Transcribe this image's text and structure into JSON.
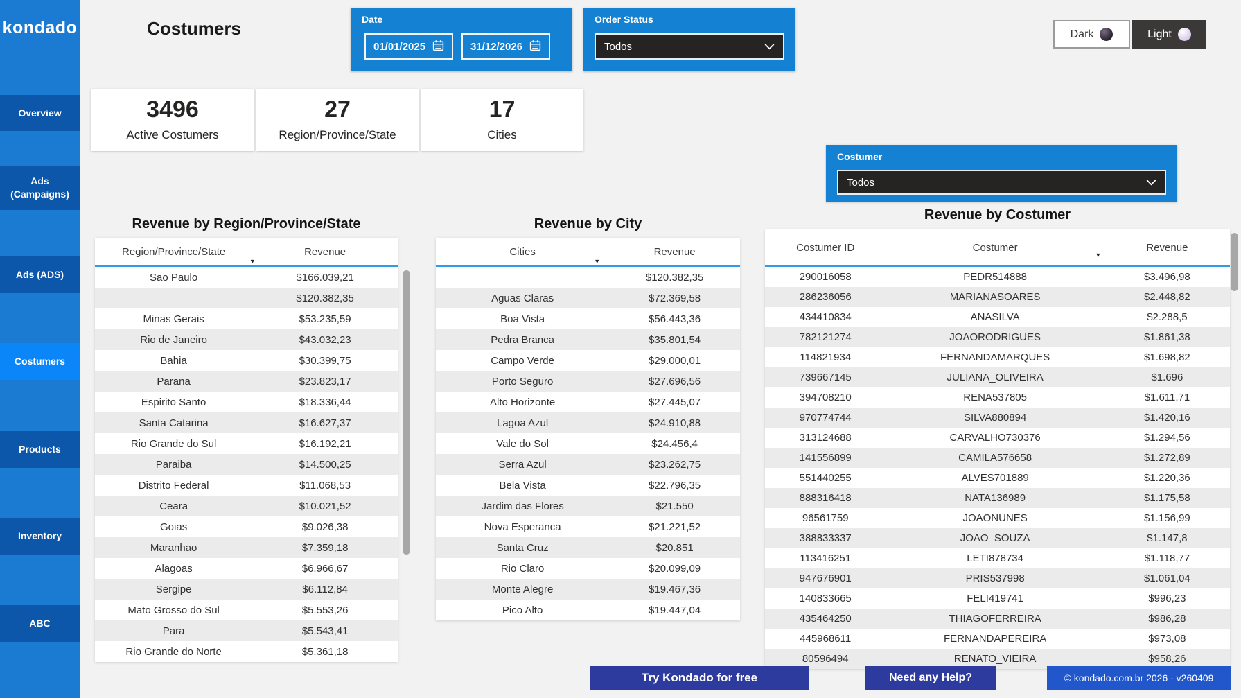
{
  "sidebar": {
    "logo": "kondado",
    "items": [
      {
        "label": "Overview",
        "active": false
      },
      {
        "label": "Ads (Campaigns)",
        "active": false
      },
      {
        "label": "Ads (ADS)",
        "active": false
      },
      {
        "label": "Costumers",
        "active": true
      },
      {
        "label": "Products",
        "active": false
      },
      {
        "label": "Inventory",
        "active": false
      },
      {
        "label": "ABC",
        "active": false
      }
    ]
  },
  "header": {
    "title": "Costumers",
    "date_filter": {
      "label": "Date",
      "start": "01/01/2025",
      "end": "31/12/2026"
    },
    "order_status_filter": {
      "label": "Order Status",
      "value": "Todos"
    },
    "theme_toggle": {
      "dark_label": "Dark",
      "light_label": "Light"
    }
  },
  "kpis": [
    {
      "value": "3496",
      "label": "Active Costumers"
    },
    {
      "value": "27",
      "label": "Region/Province/State"
    },
    {
      "value": "17",
      "label": "Cities"
    }
  ],
  "costumer_filter": {
    "label": "Costumer",
    "value": "Todos"
  },
  "icons": {
    "sort_desc": "▼"
  },
  "tables": {
    "region": {
      "title": "Revenue by Region/Province/State",
      "columns": [
        "Region/Province/State",
        "Revenue"
      ],
      "rows": [
        [
          "Sao Paulo",
          "$166.039,21"
        ],
        [
          "",
          "$120.382,35"
        ],
        [
          "Minas Gerais",
          "$53.235,59"
        ],
        [
          "Rio de Janeiro",
          "$43.032,23"
        ],
        [
          "Bahia",
          "$30.399,75"
        ],
        [
          "Parana",
          "$23.823,17"
        ],
        [
          "Espirito Santo",
          "$18.336,44"
        ],
        [
          "Santa Catarina",
          "$16.627,37"
        ],
        [
          "Rio Grande do Sul",
          "$16.192,21"
        ],
        [
          "Paraiba",
          "$14.500,25"
        ],
        [
          "Distrito Federal",
          "$11.068,53"
        ],
        [
          "Ceara",
          "$10.021,52"
        ],
        [
          "Goias",
          "$9.026,38"
        ],
        [
          "Maranhao",
          "$7.359,18"
        ],
        [
          "Alagoas",
          "$6.966,67"
        ],
        [
          "Sergipe",
          "$6.112,84"
        ],
        [
          "Mato Grosso do Sul",
          "$5.553,26"
        ],
        [
          "Para",
          "$5.543,41"
        ],
        [
          "Rio Grande do Norte",
          "$5.361,18"
        ]
      ]
    },
    "city": {
      "title": "Revenue by City",
      "columns": [
        "Cities",
        "Revenue"
      ],
      "rows": [
        [
          "",
          "$120.382,35"
        ],
        [
          "Aguas Claras",
          "$72.369,58"
        ],
        [
          "Boa Vista",
          "$56.443,36"
        ],
        [
          "Pedra Branca",
          "$35.801,54"
        ],
        [
          "Campo Verde",
          "$29.000,01"
        ],
        [
          "Porto Seguro",
          "$27.696,56"
        ],
        [
          "Alto Horizonte",
          "$27.445,07"
        ],
        [
          "Lagoa Azul",
          "$24.910,88"
        ],
        [
          "Vale do Sol",
          "$24.456,4"
        ],
        [
          "Serra Azul",
          "$23.262,75"
        ],
        [
          "Bela Vista",
          "$22.796,35"
        ],
        [
          "Jardim das Flores",
          "$21.550"
        ],
        [
          "Nova Esperanca",
          "$21.221,52"
        ],
        [
          "Santa Cruz",
          "$20.851"
        ],
        [
          "Rio Claro",
          "$20.099,09"
        ],
        [
          "Monte Alegre",
          "$19.467,36"
        ],
        [
          "Pico Alto",
          "$19.447,04"
        ]
      ]
    },
    "costumer": {
      "title": "Revenue by Costumer",
      "columns": [
        "Costumer ID",
        "Costumer",
        "Revenue"
      ],
      "rows": [
        [
          "290016058",
          "PEDR514888",
          "$3.496,98"
        ],
        [
          "286236056",
          "MARIANASOARES",
          "$2.448,82"
        ],
        [
          "434410834",
          "ANASILVA",
          "$2.288,5"
        ],
        [
          "782121274",
          "JOAORODRIGUES",
          "$1.861,38"
        ],
        [
          "114821934",
          "FERNANDAMARQUES",
          "$1.698,82"
        ],
        [
          "739667145",
          "JULIANA_OLIVEIRA",
          "$1.696"
        ],
        [
          "394708210",
          "RENA537805",
          "$1.611,71"
        ],
        [
          "970774744",
          "SILVA880894",
          "$1.420,16"
        ],
        [
          "313124688",
          "CARVALHO730376",
          "$1.294,56"
        ],
        [
          "141556899",
          "CAMILA576658",
          "$1.272,89"
        ],
        [
          "551440255",
          "ALVES701889",
          "$1.220,36"
        ],
        [
          "888316418",
          "NATA136989",
          "$1.175,58"
        ],
        [
          "96561759",
          "JOAONUNES",
          "$1.156,99"
        ],
        [
          "388833337",
          "JOAO_SOUZA",
          "$1.147,8"
        ],
        [
          "113416251",
          "LETI878734",
          "$1.118,77"
        ],
        [
          "947676901",
          "PRIS537998",
          "$1.061,04"
        ],
        [
          "140833665",
          "FELI419741",
          "$996,23"
        ],
        [
          "435464250",
          "THIAGOFERREIRA",
          "$986,28"
        ],
        [
          "445968611",
          "FERNANDAPEREIRA",
          "$973,08"
        ],
        [
          "80596494",
          "RENATO_VIEIRA",
          "$958,26"
        ]
      ]
    }
  },
  "footer": {
    "try_button": "Try Kondado for free",
    "help_button": "Need any Help?",
    "copyright": "© kondado.com.br 2026 - v260409"
  },
  "colors": {
    "sidebar_blue": "#1b7ad2",
    "nav_item_blue": "#0c57a9",
    "active_nav_blue": "#0b86f8",
    "filter_panel_blue": "#1581d2",
    "slicer_dark": "#252423",
    "table_header_underline": "#2e9ceb",
    "row_stripe_gray": "#ebebeb",
    "footer_button_blue": "#2c3b9d",
    "copyright_blue": "#2257cb",
    "background_gray": "#f2f2f2"
  }
}
